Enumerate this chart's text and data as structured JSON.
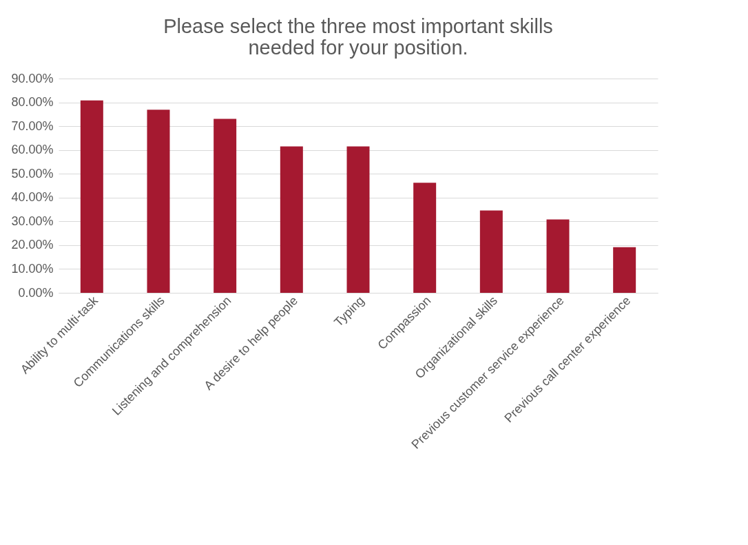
{
  "chart_data": {
    "type": "bar",
    "title": [
      "Please select the three most important skills",
      "needed for your position."
    ],
    "categories": [
      "Ability to multi-task",
      "Communications skills",
      "Listening and comprehension",
      "A desire to help people",
      "Typing",
      "Compassion",
      "Organizational skills",
      "Previous customer service experience",
      "Previous call center experience"
    ],
    "values": [
      80.8,
      76.9,
      73.1,
      61.5,
      61.5,
      46.2,
      34.6,
      30.8,
      19.2
    ],
    "color": "#a51930",
    "ylim": [
      0,
      90
    ],
    "yticks": [
      {
        "value": 0,
        "label": "0.00%"
      },
      {
        "value": 10,
        "label": "10.00%"
      },
      {
        "value": 20,
        "label": "20.00%"
      },
      {
        "value": 30,
        "label": "30.00%"
      },
      {
        "value": 40,
        "label": "40.00%"
      },
      {
        "value": 50,
        "label": "50.00%"
      },
      {
        "value": 60,
        "label": "60.00%"
      },
      {
        "value": 70,
        "label": "70.00%"
      },
      {
        "value": 80,
        "label": "80.00%"
      },
      {
        "value": 90,
        "label": "90.00%"
      }
    ],
    "grid": "y"
  }
}
